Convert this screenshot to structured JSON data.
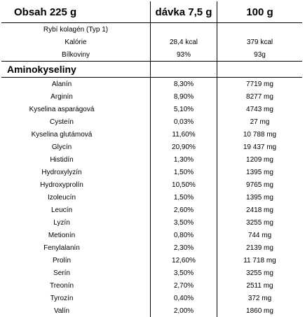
{
  "header": {
    "col1": "Obsah 225 g",
    "col2": "dávka 7,5 g",
    "col3": "100 g"
  },
  "info_rows": [
    {
      "label": "Rybí kolagén (Typ 1)",
      "dose": "",
      "per100": ""
    },
    {
      "label": "Kalórie",
      "dose": "28,4 kcal",
      "per100": "379 kcal"
    },
    {
      "label": "Bílkoviny",
      "dose": "93%",
      "per100": "93g"
    }
  ],
  "section_title": "Aminokyseliny",
  "amino_rows": [
    {
      "label": "Alanín",
      "dose": "8,30%",
      "per100": "7719 mg"
    },
    {
      "label": "Arginín",
      "dose": "8,90%",
      "per100": "8277 mg"
    },
    {
      "label": "Kyselina asparágová",
      "dose": "5,10%",
      "per100": "4743 mg"
    },
    {
      "label": "Cysteín",
      "dose": "0,03%",
      "per100": "27 mg"
    },
    {
      "label": "Kyselina glutámová",
      "dose": "11,60%",
      "per100": "10 788 mg"
    },
    {
      "label": "Glycín",
      "dose": "20,90%",
      "per100": "19 437 mg"
    },
    {
      "label": "Histidín",
      "dose": "1,30%",
      "per100": "1209 mg"
    },
    {
      "label": "Hydroxylyzín",
      "dose": "1,50%",
      "per100": "1395 mg"
    },
    {
      "label": "Hydroxyprolín",
      "dose": "10,50%",
      "per100": "9765 mg"
    },
    {
      "label": "Izoleucín",
      "dose": "1,50%",
      "per100": "1395 mg"
    },
    {
      "label": "Leucín",
      "dose": "2,60%",
      "per100": "2418 mg"
    },
    {
      "label": "Lyzín",
      "dose": "3,50%",
      "per100": "3255 mg"
    },
    {
      "label": "Metionín",
      "dose": "0,80%",
      "per100": "744 mg"
    },
    {
      "label": "Fenylalanín",
      "dose": "2,30%",
      "per100": "2139 mg"
    },
    {
      "label": "Prolín",
      "dose": "12,60%",
      "per100": "11 718 mg"
    },
    {
      "label": "Serín",
      "dose": "3,50%",
      "per100": "3255 mg"
    },
    {
      "label": "Treonín",
      "dose": "2,70%",
      "per100": "2511 mg"
    },
    {
      "label": "Tyrozín",
      "dose": "0,40%",
      "per100": "372 mg"
    },
    {
      "label": "Valín",
      "dose": "2,00%",
      "per100": "1860 mg"
    }
  ]
}
